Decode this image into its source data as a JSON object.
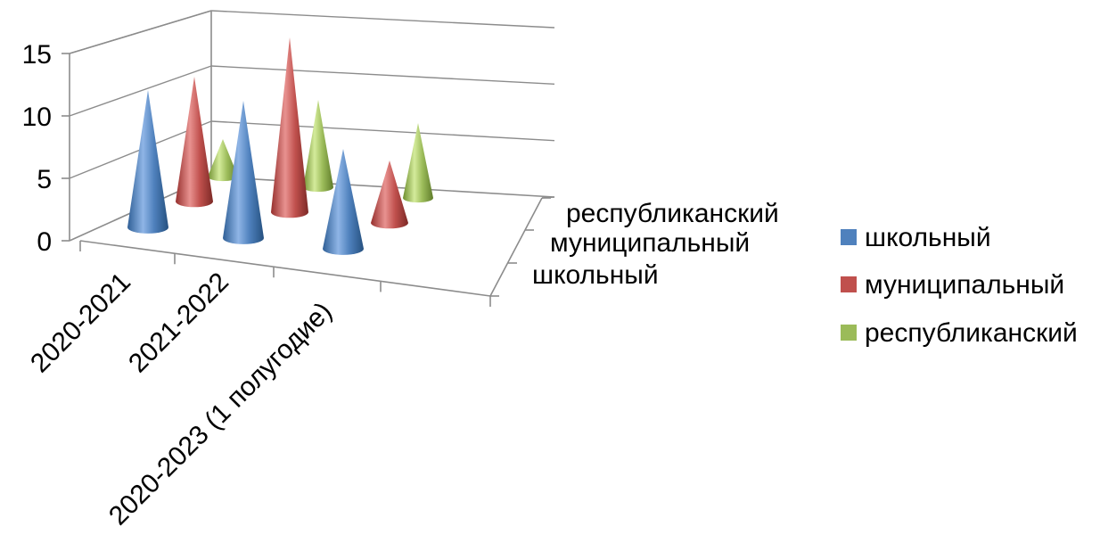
{
  "chart_data": {
    "type": "bar",
    "shape": "cone-3d",
    "categories": [
      "2020-2021",
      "2021-2022",
      "2020-2023 (1 полугодие)"
    ],
    "series": [
      {
        "name": "школьный",
        "color": "#4F81BD",
        "values": [
          11,
          11,
          8
        ]
      },
      {
        "name": "муниципальный",
        "color": "#C0504D",
        "values": [
          10,
          14,
          5
        ]
      },
      {
        "name": "республиканский",
        "color": "#9BBB59",
        "values": [
          3,
          7,
          6
        ]
      }
    ],
    "y_ticks": [
      0,
      5,
      10,
      15
    ],
    "ylim": [
      0,
      15
    ],
    "depth_labels": [
      "школьный",
      "муниципальный",
      "республиканский"
    ],
    "legend": {
      "position": "right",
      "items": [
        "школьный",
        "муниципальный",
        "республиканский"
      ]
    },
    "grid": true
  }
}
